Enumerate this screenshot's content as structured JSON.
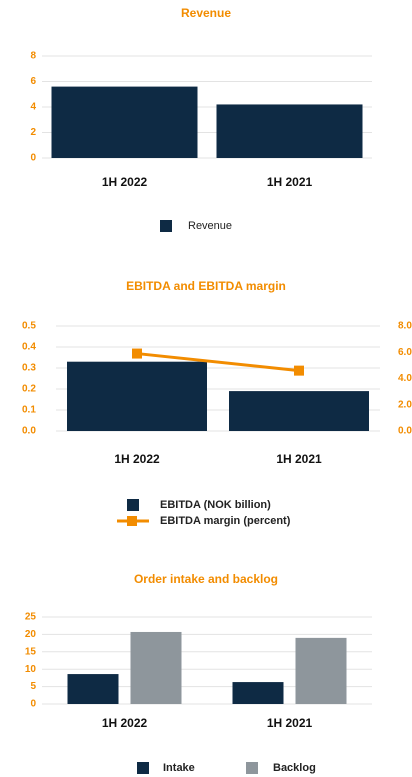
{
  "chart_data": [
    {
      "type": "bar",
      "title": "Revenue",
      "categories": [
        "1H 2022",
        "1H 2021"
      ],
      "series": [
        {
          "name": "Revenue",
          "color": "#0e2a44",
          "values": [
            5.6,
            4.2
          ]
        }
      ],
      "ylim": [
        0,
        8
      ],
      "yticks": [
        0,
        2,
        4,
        6,
        8
      ],
      "grid": true,
      "legend": "bottom"
    },
    {
      "type": "bar-line",
      "title": "EBITDA and EBITDA margin",
      "categories": [
        "1H 2022",
        "1H 2021"
      ],
      "series": [
        {
          "name": "EBITDA (NOK billion)",
          "color": "#0e2a44",
          "values": [
            0.33,
            0.19
          ]
        },
        {
          "name": "EBITDA margin (percent)",
          "color": "#f28c00",
          "values": [
            5.9,
            4.6
          ],
          "axis": "y2"
        }
      ],
      "ylim": [
        0,
        0.5
      ],
      "yticks": [
        {
          "value": 0,
          "label": "0.0"
        },
        0.1,
        0.2,
        0.3,
        0.4,
        0.5
      ],
      "y2lim": [
        0,
        8
      ],
      "y2ticks": [
        {
          "value": 0,
          "label": "0.0"
        },
        {
          "value": 2,
          "label": "2.0"
        },
        {
          "value": 4,
          "label": "4.0"
        },
        {
          "value": 6,
          "label": "6.0"
        },
        {
          "value": 8,
          "label": "8.0"
        }
      ],
      "grid": true,
      "legend": "bottom"
    },
    {
      "type": "bar",
      "title": "Order intake and backlog",
      "categories": [
        "1H 2022",
        "1H 2021"
      ],
      "series": [
        {
          "name": "Intake",
          "color": "#0e2a44",
          "values": [
            8.6,
            6.3
          ]
        },
        {
          "name": "Backlog",
          "color": "#8e969c",
          "values": [
            20.7,
            19.0
          ]
        }
      ],
      "ylim": [
        0,
        25
      ],
      "yticks": [
        0,
        5,
        10,
        15,
        20,
        25
      ],
      "grid": true,
      "legend": "bottom"
    }
  ]
}
